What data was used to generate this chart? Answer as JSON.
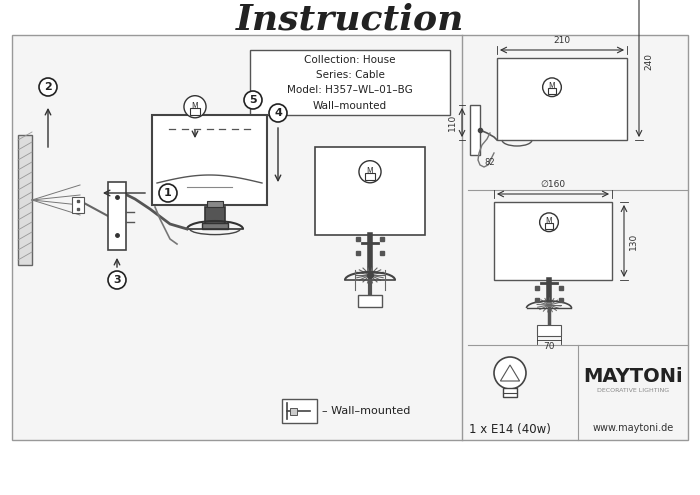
{
  "title": "Instruction",
  "title_fontsize": 26,
  "bg_color": "#ffffff",
  "panel_bg": "#f5f5f5",
  "border_color": "#888888",
  "text_color": "#222222",
  "collection_text": "Collection: House\nSeries: Cable\nModel: H357–WL–01–BG\nWall–mounted",
  "wall_mounted_label": "– Wall–mounted",
  "bulb_label": "1 x E14 (40w)",
  "maytoni_url": "www.maytoni.de",
  "maytoni_brand": "MAYTONi",
  "maytoni_sub": "DECORATIVE LIGHTING",
  "dim_top_width": "210",
  "dim_side_height": "240",
  "dim_side_left": "110",
  "dim_bottom": "82",
  "dim2_width": "∅160",
  "dim2_height": "130",
  "dim2_bottom": "70"
}
